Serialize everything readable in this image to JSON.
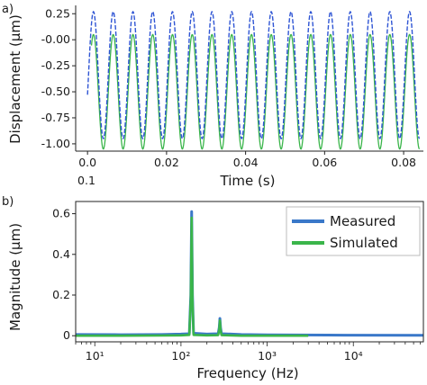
{
  "chart_data": [
    {
      "panel_label": "a)",
      "type": "line",
      "xlabel": "Time (s)",
      "ylabel": "Displacement (µm)",
      "xlim": [
        -0.003,
        0.085
      ],
      "ylim": [
        -1.07,
        0.33
      ],
      "x_ticks": [
        0.0,
        0.02,
        0.04,
        0.06,
        0.08
      ],
      "x_tick_labels": [
        "0.0",
        "0.02",
        "0.04",
        "0.06",
        "0.08"
      ],
      "y_ticks": [
        0.25,
        0.0,
        -0.25,
        -0.5,
        -0.75,
        -1.0
      ],
      "y_tick_labels": [
        "0.25",
        "-0.00",
        "-0.25",
        "-0.50",
        "-0.75",
        "-1.00"
      ],
      "extra_labels": [
        "0.1"
      ],
      "grid": false,
      "series": [
        {
          "color": "#2f55d4",
          "dashed": true,
          "frequency_hz": 200,
          "max": 0.27,
          "min": -0.95,
          "t_start": 0.0,
          "t_end": 0.084
        },
        {
          "color": "#3ab54a",
          "dashed": false,
          "frequency_hz": 200,
          "max": 0.05,
          "min": -1.05,
          "t_start": 0.001,
          "t_end": 0.084
        }
      ]
    },
    {
      "panel_label": "b)",
      "type": "line",
      "xlabel": "Frequency (Hz)",
      "ylabel": "Magnitude (µm)",
      "x_scale": "log",
      "xlim": [
        6,
        65000
      ],
      "ylim": [
        -0.03,
        0.66
      ],
      "x_ticks": [
        10,
        100,
        1000,
        10000
      ],
      "x_tick_labels": [
        "10¹",
        "10²",
        "10³",
        "10⁴"
      ],
      "y_ticks": [
        0.0,
        0.2,
        0.4,
        0.6
      ],
      "y_tick_labels": [
        "0",
        "0.2",
        "0.4",
        "0.6"
      ],
      "grid": false,
      "legend_position": "top-right",
      "series": [
        {
          "name": "Measured",
          "color": "#3a78c9",
          "points": [
            [
              6,
              0.006
            ],
            [
              20,
              0.005
            ],
            [
              60,
              0.006
            ],
            [
              100,
              0.008
            ],
            [
              125,
              0.01
            ],
            [
              130,
              0.2
            ],
            [
              133,
              0.61
            ],
            [
              136,
              0.2
            ],
            [
              140,
              0.012
            ],
            [
              200,
              0.008
            ],
            [
              270,
              0.01
            ],
            [
              278,
              0.04
            ],
            [
              283,
              0.085
            ],
            [
              288,
              0.04
            ],
            [
              295,
              0.01
            ],
            [
              500,
              0.006
            ],
            [
              1000,
              0.004
            ],
            [
              5000,
              0.003
            ],
            [
              65000,
              0.002
            ]
          ]
        },
        {
          "name": "Simulated",
          "color": "#3ab54a",
          "points": [
            [
              6,
              0.0
            ],
            [
              20,
              0.0
            ],
            [
              60,
              0.001
            ],
            [
              100,
              0.002
            ],
            [
              125,
              0.004
            ],
            [
              130,
              0.18
            ],
            [
              133,
              0.58
            ],
            [
              136,
              0.18
            ],
            [
              140,
              0.004
            ],
            [
              200,
              0.002
            ],
            [
              270,
              0.003
            ],
            [
              278,
              0.03
            ],
            [
              283,
              0.075
            ],
            [
              288,
              0.03
            ],
            [
              295,
              0.003
            ],
            [
              500,
              0.0
            ],
            [
              1000,
              0.0
            ],
            [
              3000,
              0.0
            ]
          ]
        }
      ]
    }
  ]
}
